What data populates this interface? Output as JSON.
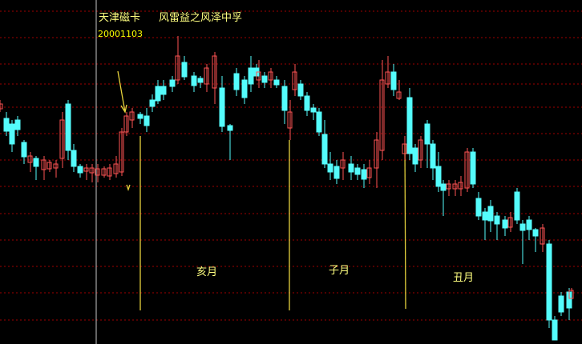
{
  "header": {
    "stock_name": "天津磁卡",
    "hexagram": "风雷益之风泽中孚",
    "date": "20001103"
  },
  "months": [
    "亥月",
    "子月",
    "丑月"
  ]
}
